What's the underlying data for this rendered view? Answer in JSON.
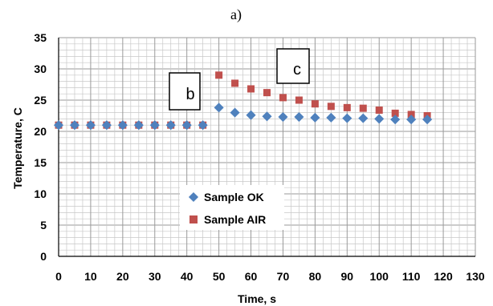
{
  "panel_label": "a)",
  "chart_data": {
    "type": "scatter",
    "title": "",
    "xlabel": "Time, s",
    "ylabel": "Temperature, C",
    "xlim": [
      0,
      130
    ],
    "ylim": [
      0,
      35
    ],
    "x_ticks": [
      0,
      10,
      20,
      30,
      40,
      50,
      60,
      70,
      80,
      90,
      100,
      110,
      120,
      130
    ],
    "x_tick_labels": [
      "0",
      "10",
      "20",
      "30",
      "40",
      "50",
      "60",
      "70",
      "80",
      "90",
      "100",
      "110",
      "120",
      "130"
    ],
    "y_ticks": [
      0,
      5,
      10,
      15,
      20,
      25,
      30,
      35
    ],
    "y_tick_labels": [
      "0",
      "5",
      "10",
      "15",
      "20",
      "25",
      "30",
      "35"
    ],
    "grid": true,
    "legend_position": "center-left",
    "series": [
      {
        "name": "Sample OK",
        "marker": "diamond",
        "color": "#4f81bd",
        "x": [
          0,
          5,
          10,
          15,
          20,
          25,
          30,
          35,
          40,
          45,
          50,
          55,
          60,
          65,
          70,
          75,
          80,
          85,
          90,
          95,
          100,
          105,
          110,
          115
        ],
        "y": [
          21.0,
          21.0,
          21.0,
          21.0,
          21.0,
          21.0,
          21.0,
          21.0,
          21.0,
          21.0,
          23.8,
          23.0,
          22.6,
          22.4,
          22.3,
          22.3,
          22.2,
          22.2,
          22.1,
          22.1,
          22.0,
          21.9,
          21.9,
          21.9
        ]
      },
      {
        "name": "Sample AIR",
        "marker": "square",
        "color": "#c0504d",
        "x": [
          0,
          5,
          10,
          15,
          20,
          25,
          30,
          35,
          40,
          45,
          50,
          55,
          60,
          65,
          70,
          75,
          80,
          85,
          90,
          95,
          100,
          105,
          110,
          115
        ],
        "y": [
          21.0,
          21.0,
          21.0,
          21.0,
          21.0,
          21.0,
          21.0,
          21.0,
          21.0,
          21.0,
          29.0,
          27.7,
          26.8,
          26.2,
          25.4,
          25.0,
          24.4,
          24.0,
          23.8,
          23.7,
          23.4,
          22.9,
          22.7,
          22.5
        ]
      }
    ],
    "annotations": [
      {
        "label": "b"
      },
      {
        "label": "c"
      }
    ]
  }
}
